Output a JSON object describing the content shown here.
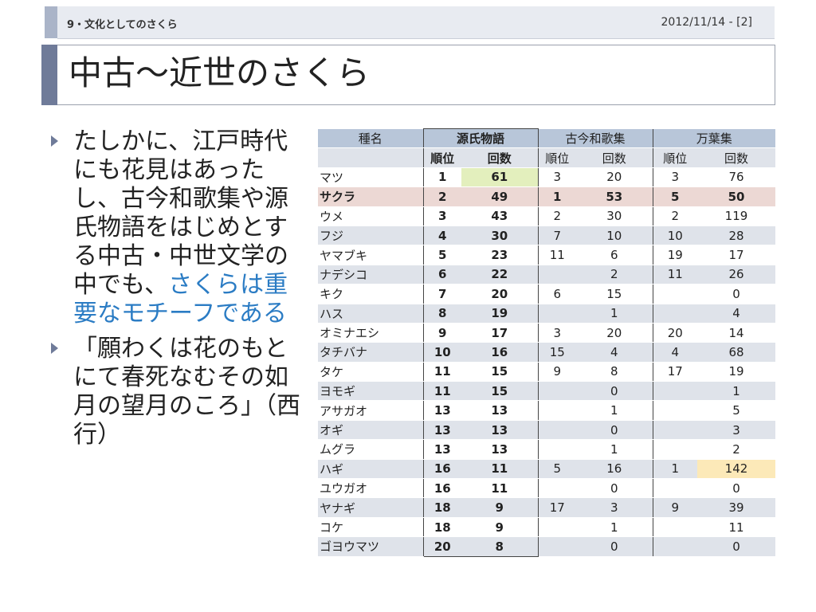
{
  "header": {
    "section": "9・文化としてのさくら",
    "date": "2012/11/14 - [2]"
  },
  "title": "中古～近世のさくら",
  "bullets": [
    {
      "before": "たしかに、江戸時代にも花見はあったし、古今和歌集や源氏物語をはじめとする中古・中世文学の中でも、",
      "highlight": "さくらは重要なモチーフである"
    },
    {
      "before": "「願わくは花のもとにて春死なむその如月の望月のころ」（西行）",
      "highlight": ""
    }
  ],
  "table": {
    "name_header": "種名",
    "groups": [
      "源氏物語",
      "古今和歌集",
      "万葉集"
    ],
    "rank_label": "順位",
    "count_label": "回数",
    "rows": [
      {
        "name": "マツ",
        "genji_rank": "1",
        "genji_count": "61",
        "kokin_rank": "3",
        "kokin_count": "20",
        "manyo_rank": "3",
        "manyo_count": "76"
      },
      {
        "name": "サクラ",
        "genji_rank": "2",
        "genji_count": "49",
        "kokin_rank": "1",
        "kokin_count": "53",
        "manyo_rank": "5",
        "manyo_count": "50"
      },
      {
        "name": "ウメ",
        "genji_rank": "3",
        "genji_count": "43",
        "kokin_rank": "2",
        "kokin_count": "30",
        "manyo_rank": "2",
        "manyo_count": "119"
      },
      {
        "name": "フジ",
        "genji_rank": "4",
        "genji_count": "30",
        "kokin_rank": "7",
        "kokin_count": "10",
        "manyo_rank": "10",
        "manyo_count": "28"
      },
      {
        "name": "ヤマブキ",
        "genji_rank": "5",
        "genji_count": "23",
        "kokin_rank": "11",
        "kokin_count": "6",
        "manyo_rank": "19",
        "manyo_count": "17"
      },
      {
        "name": "ナデシコ",
        "genji_rank": "6",
        "genji_count": "22",
        "kokin_rank": "",
        "kokin_count": "2",
        "manyo_rank": "11",
        "manyo_count": "26"
      },
      {
        "name": "キク",
        "genji_rank": "7",
        "genji_count": "20",
        "kokin_rank": "6",
        "kokin_count": "15",
        "manyo_rank": "",
        "manyo_count": "0"
      },
      {
        "name": "ハス",
        "genji_rank": "8",
        "genji_count": "19",
        "kokin_rank": "",
        "kokin_count": "1",
        "manyo_rank": "",
        "manyo_count": "4"
      },
      {
        "name": "オミナエシ",
        "genji_rank": "9",
        "genji_count": "17",
        "kokin_rank": "3",
        "kokin_count": "20",
        "manyo_rank": "20",
        "manyo_count": "14"
      },
      {
        "name": "タチバナ",
        "genji_rank": "10",
        "genji_count": "16",
        "kokin_rank": "15",
        "kokin_count": "4",
        "manyo_rank": "4",
        "manyo_count": "68"
      },
      {
        "name": "タケ",
        "genji_rank": "11",
        "genji_count": "15",
        "kokin_rank": "9",
        "kokin_count": "8",
        "manyo_rank": "17",
        "manyo_count": "19"
      },
      {
        "name": "ヨモギ",
        "genji_rank": "11",
        "genji_count": "15",
        "kokin_rank": "",
        "kokin_count": "0",
        "manyo_rank": "",
        "manyo_count": "1"
      },
      {
        "name": "アサガオ",
        "genji_rank": "13",
        "genji_count": "13",
        "kokin_rank": "",
        "kokin_count": "1",
        "manyo_rank": "",
        "manyo_count": "5"
      },
      {
        "name": "オギ",
        "genji_rank": "13",
        "genji_count": "13",
        "kokin_rank": "",
        "kokin_count": "0",
        "manyo_rank": "",
        "manyo_count": "3"
      },
      {
        "name": "ムグラ",
        "genji_rank": "13",
        "genji_count": "13",
        "kokin_rank": "",
        "kokin_count": "1",
        "manyo_rank": "",
        "manyo_count": "2"
      },
      {
        "name": "ハギ",
        "genji_rank": "16",
        "genji_count": "11",
        "kokin_rank": "5",
        "kokin_count": "16",
        "manyo_rank": "1",
        "manyo_count": "142"
      },
      {
        "name": "ユウガオ",
        "genji_rank": "16",
        "genji_count": "11",
        "kokin_rank": "",
        "kokin_count": "0",
        "manyo_rank": "",
        "manyo_count": "0"
      },
      {
        "name": "ヤナギ",
        "genji_rank": "18",
        "genji_count": "9",
        "kokin_rank": "17",
        "kokin_count": "3",
        "manyo_rank": "9",
        "manyo_count": "39"
      },
      {
        "name": "コケ",
        "genji_rank": "18",
        "genji_count": "9",
        "kokin_rank": "",
        "kokin_count": "1",
        "manyo_rank": "",
        "manyo_count": "11"
      },
      {
        "name": "ゴヨウマツ",
        "genji_rank": "20",
        "genji_count": "8",
        "kokin_rank": "",
        "kokin_count": "0",
        "manyo_rank": "",
        "manyo_count": "0"
      }
    ]
  },
  "colors": {
    "accent": "#6f7b99",
    "highlight_text": "#2b7cc4",
    "sakura_row": "#ecd8d4",
    "green_cell": "#e3efbd",
    "yellow_cell": "#fce9b8"
  }
}
